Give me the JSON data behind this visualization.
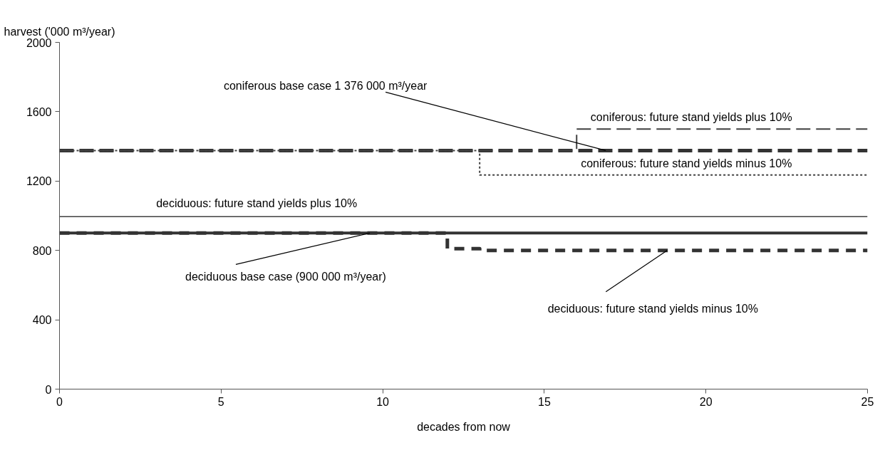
{
  "chart_data": {
    "type": "line",
    "xlabel": "decades from now",
    "ylabel": "harvest ('000 m³/year)",
    "xlim": [
      0,
      25
    ],
    "ylim": [
      0,
      2000
    ],
    "xticks": [
      0,
      5,
      10,
      15,
      20,
      25
    ],
    "yticks": [
      0,
      400,
      800,
      1200,
      1600,
      2000
    ],
    "grid": false,
    "marker": "none",
    "series": [
      {
        "color": "#333333",
        "line_style": "dashed",
        "x": [
          0,
          25
        ],
        "values": [
          1376,
          1376
        ]
      },
      {
        "color": "#404040",
        "line_style": "dashed",
        "x": [
          0,
          16,
          16,
          25
        ],
        "values": [
          1376,
          1376,
          1500,
          1500
        ]
      },
      {
        "color": "#404040",
        "line_style": "dotted",
        "x": [
          0,
          13,
          13,
          25
        ],
        "values": [
          1376,
          1376,
          1235,
          1235
        ]
      },
      {
        "color": "#404040",
        "line_style": "solid",
        "x": [
          0,
          25
        ],
        "values": [
          995,
          995
        ]
      },
      {
        "color": "#333333",
        "line_style": "solid",
        "x": [
          0,
          25
        ],
        "values": [
          900,
          900
        ]
      },
      {
        "color": "#333333",
        "line_style": "dashed",
        "x": [
          0,
          12,
          12,
          13,
          13,
          25
        ],
        "values": [
          900,
          900,
          810,
          810,
          800,
          800
        ]
      }
    ],
    "annotations": [
      {
        "text": "coniferous  base case  1 376 000 m³/year",
        "x": 16.9,
        "y": 1376
      },
      {
        "text": "coniferous: future stand yields plus 10%",
        "x": 19.55,
        "y": 1500
      },
      {
        "text": "coniferous: future stand yields minus 10%",
        "x": 19.55,
        "y": 1235
      },
      {
        "text": "deciduous: future stand yields plus 10%",
        "x": 6.1,
        "y": 995
      },
      {
        "text": "deciduous base case (900 000 m³/year)",
        "x": 9.6,
        "y": 900
      },
      {
        "text": "deciduous: future stand yields minus 10%",
        "x": 18.8,
        "y": 800
      }
    ]
  }
}
